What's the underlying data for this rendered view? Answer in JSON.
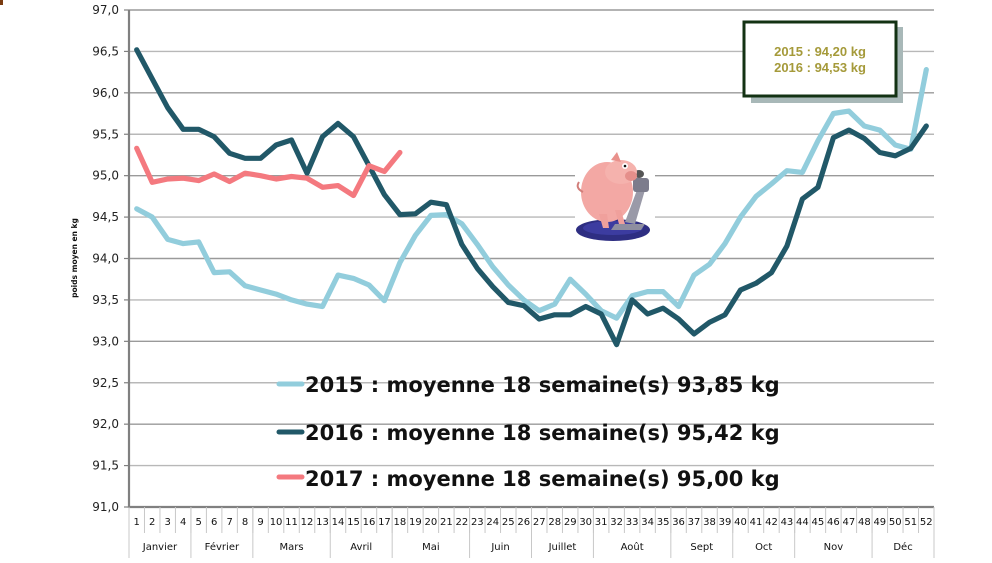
{
  "chart_data": {
    "type": "line",
    "title": "",
    "xlabel": "",
    "ylabel": "poids moyen en kg",
    "ylim": [
      91.0,
      97.0
    ],
    "yticks": [
      "91,0",
      "91,5",
      "92,0",
      "92,5",
      "93,0",
      "93,5",
      "94,0",
      "94,5",
      "95,0",
      "95,5",
      "96,0",
      "96,5",
      "97,0"
    ],
    "grid": true,
    "x": [
      1,
      2,
      3,
      4,
      5,
      6,
      7,
      8,
      9,
      10,
      11,
      12,
      13,
      14,
      15,
      16,
      17,
      18,
      19,
      20,
      21,
      22,
      23,
      24,
      25,
      26,
      27,
      28,
      29,
      30,
      31,
      32,
      33,
      34,
      35,
      36,
      37,
      38,
      39,
      40,
      41,
      42,
      43,
      44,
      45,
      46,
      47,
      48,
      49,
      50,
      51,
      52
    ],
    "months": [
      {
        "label": "Janvier",
        "from": 1,
        "to": 4
      },
      {
        "label": "Février",
        "from": 5,
        "to": 8
      },
      {
        "label": "Mars",
        "from": 9,
        "to": 13
      },
      {
        "label": "Avril",
        "from": 14,
        "to": 17
      },
      {
        "label": "Mai",
        "from": 18,
        "to": 22
      },
      {
        "label": "Juin",
        "from": 23,
        "to": 26
      },
      {
        "label": "Juillet",
        "from": 27,
        "to": 30
      },
      {
        "label": "Août",
        "from": 31,
        "to": 35
      },
      {
        "label": "Sept",
        "from": 36,
        "to": 39
      },
      {
        "label": "Oct",
        "from": 40,
        "to": 43
      },
      {
        "label": "Nov",
        "from": 44,
        "to": 48
      },
      {
        "label": "Déc",
        "from": 49,
        "to": 52
      }
    ],
    "series": [
      {
        "name": "2015 : moyenne 18 semaine(s) 93,85 kg",
        "year": "2015",
        "color": "#92cddc",
        "values": [
          94.6,
          94.5,
          94.23,
          94.18,
          94.2,
          93.83,
          93.84,
          93.67,
          93.62,
          93.57,
          93.5,
          93.45,
          93.42,
          93.8,
          93.76,
          93.68,
          93.49,
          93.95,
          94.28,
          94.52,
          94.53,
          94.42,
          94.17,
          93.9,
          93.68,
          93.5,
          93.37,
          93.45,
          93.75,
          93.57,
          93.37,
          93.28,
          93.55,
          93.6,
          93.6,
          93.42,
          93.8,
          93.93,
          94.18,
          94.5,
          94.75,
          94.9,
          95.06,
          95.04,
          95.42,
          95.75,
          95.78,
          95.6,
          95.55,
          95.37,
          95.32,
          96.28
        ]
      },
      {
        "name": "2016 : moyenne 18 semaine(s) 95,42 kg",
        "year": "2016",
        "color": "#215868",
        "values": [
          96.52,
          96.17,
          95.82,
          95.56,
          95.56,
          95.47,
          95.27,
          95.21,
          95.21,
          95.37,
          95.43,
          95.03,
          95.47,
          95.63,
          95.47,
          95.12,
          94.77,
          94.53,
          94.54,
          94.68,
          94.65,
          94.17,
          93.88,
          93.66,
          93.47,
          93.43,
          93.27,
          93.32,
          93.32,
          93.42,
          93.33,
          92.96,
          93.5,
          93.33,
          93.4,
          93.27,
          93.09,
          93.23,
          93.32,
          93.62,
          93.7,
          93.83,
          94.15,
          94.72,
          94.86,
          95.46,
          95.55,
          95.45,
          95.28,
          95.24,
          95.33,
          95.6
        ]
      },
      {
        "name": "2017 : moyenne 18 semaine(s) 95,00 kg",
        "year": "2017",
        "color": "#f4797f",
        "values": [
          95.33,
          94.92,
          94.96,
          94.97,
          94.94,
          95.02,
          94.93,
          95.03,
          95.0,
          94.96,
          94.99,
          94.97,
          94.86,
          94.88,
          94.76,
          95.12,
          95.05,
          95.28
        ]
      }
    ],
    "legend": {
      "position": "inside-bottom-center",
      "entries": [
        "2015 : moyenne 18 semaine(s) 93,85 kg",
        "2016 : moyenne 18 semaine(s) 95,42 kg",
        "2017 : moyenne 18 semaine(s) 95,00 kg"
      ]
    },
    "annotations": [
      {
        "type": "textbox",
        "lines": [
          "2015 : 94,20 kg",
          "2016 : 94,53 kg"
        ],
        "text_color": "#a59a3a",
        "border_color": "#133213"
      },
      {
        "type": "image",
        "name": "pig-on-scale-icon"
      }
    ]
  },
  "annotation_box": {
    "line1": "2015 : 94,20 kg",
    "line2": "2016 : 94,53 kg"
  },
  "legend": {
    "entry_2015": "2015 : moyenne 18 semaine(s) 93,85 kg",
    "entry_2016": "2016 : moyenne 18 semaine(s) 95,42 kg",
    "entry_2017": "2017 : moyenne 18 semaine(s) 95,00 kg"
  },
  "axis": {
    "y_label": "poids moyen en kg"
  },
  "colors": {
    "s2015": "#92cddc",
    "s2016": "#215868",
    "s2017": "#f4797f",
    "grid": "#b8b8b8",
    "axis": "#808080",
    "annotation_text": "#a59a3a",
    "annotation_border": "#133213",
    "annotation_shadow": "#a8b8b8"
  }
}
